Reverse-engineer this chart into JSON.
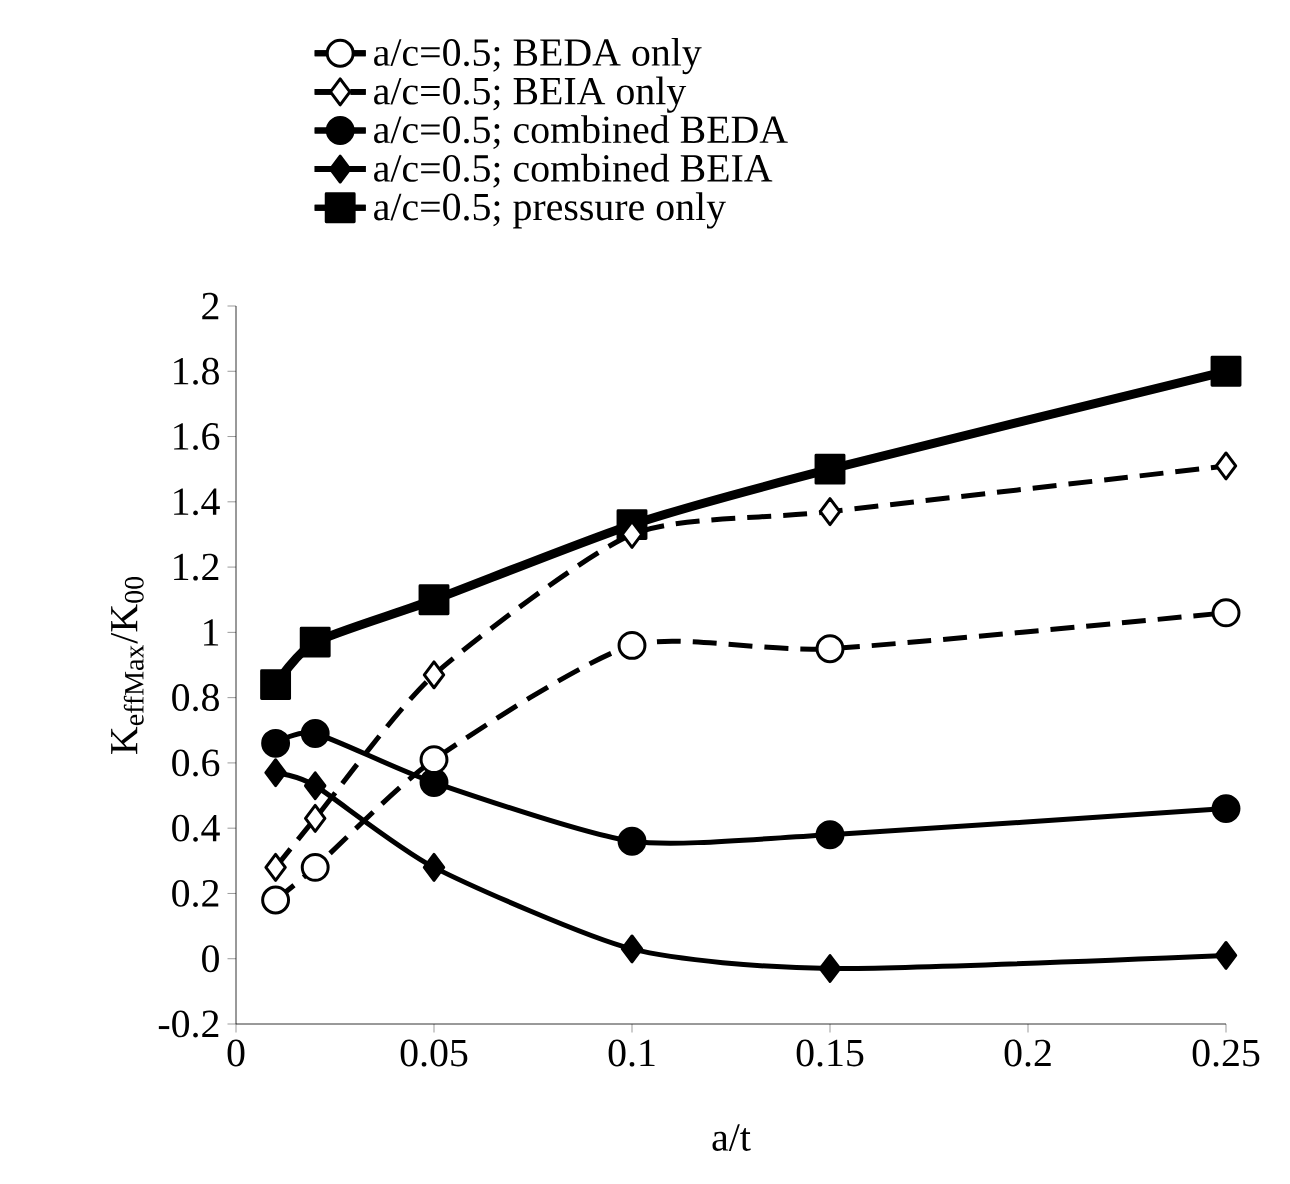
{
  "chart_data": {
    "type": "line",
    "xlabel": "a/t",
    "ylabel": "K$_{effMax}$/K$_{00}$",
    "x": [
      0.01,
      0.02,
      0.05,
      0.1,
      0.15,
      0.25
    ],
    "xlim": [
      0,
      0.25
    ],
    "xticks": [
      0,
      0.05,
      0.1,
      0.15,
      0.2,
      0.25
    ],
    "ylim": [
      -0.2,
      2
    ],
    "yticks": [
      -0.2,
      0,
      0.2,
      0.4,
      0.6,
      0.8,
      1,
      1.2,
      1.4,
      1.6,
      1.8,
      2
    ],
    "legend": "top",
    "grid": false,
    "series": [
      {
        "name": "a/c=0.5; BEDA only",
        "color": "#000000",
        "marker": "circle",
        "line_style": "dashed",
        "values": [
          0.18,
          0.28,
          0.61,
          0.96,
          0.95,
          1.06
        ]
      },
      {
        "name": "a/c=0.5; BEIA only",
        "color": "#000000",
        "marker": "diamond",
        "line_style": "dashed",
        "values": [
          0.28,
          0.43,
          0.87,
          1.3,
          1.37,
          1.51
        ]
      },
      {
        "name": "a/c=0.5; combined BEDA",
        "color": "#000000",
        "marker": "circle",
        "line_style": "solid",
        "values": [
          0.66,
          0.69,
          0.54,
          0.36,
          0.38,
          0.46
        ]
      },
      {
        "name": "a/c=0.5; combined BEIA",
        "color": "#000000",
        "marker": "diamond",
        "line_style": "solid",
        "values": [
          0.57,
          0.53,
          0.28,
          0.03,
          -0.03,
          0.01
        ]
      },
      {
        "name": "a/c=0.5; pressure only",
        "color": "#000000",
        "marker": "square",
        "line_style": "solid",
        "values": [
          0.84,
          0.97,
          1.1,
          1.33,
          1.5,
          1.8
        ]
      }
    ]
  }
}
